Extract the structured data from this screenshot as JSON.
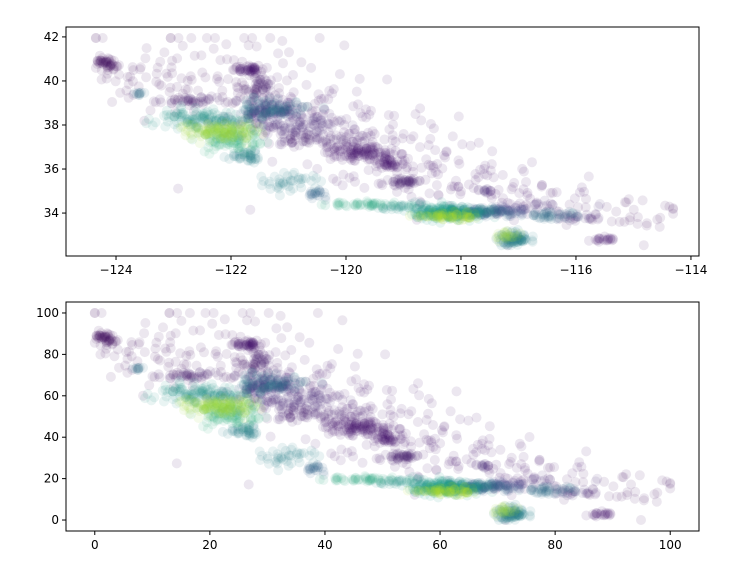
{
  "chart_data": [
    {
      "type": "scatter",
      "title": "",
      "xlabel": "",
      "ylabel": "",
      "xlim": [
        -124.87,
        -113.86
      ],
      "ylim": [
        32.05,
        42.45
      ],
      "xticks": [
        -124,
        -122,
        -120,
        -118,
        -116,
        -114
      ],
      "yticks": [
        34,
        36,
        38,
        40,
        42
      ],
      "xtick_labels": [
        "−124",
        "−122",
        "−120",
        "−118",
        "−116",
        "−114"
      ],
      "ytick_labels": [
        "34",
        "36",
        "38",
        "40",
        "42"
      ],
      "grid": false,
      "colormap": "viridis",
      "marker_alpha": 0.1,
      "seed": 7,
      "clusters": [
        {
          "x": -123.5,
          "y": 40.5,
          "sx": 0.7,
          "sy": 0.9,
          "n": 60,
          "c": 0.05
        },
        {
          "x": -122.0,
          "y": 40.0,
          "sx": 0.8,
          "sy": 1.2,
          "n": 70,
          "c": 0.05
        },
        {
          "x": -120.8,
          "y": 38.8,
          "sx": 0.7,
          "sy": 1.0,
          "n": 80,
          "c": 0.06
        },
        {
          "x": -119.5,
          "y": 37.3,
          "sx": 0.8,
          "sy": 0.9,
          "n": 70,
          "c": 0.06
        },
        {
          "x": -118.3,
          "y": 35.8,
          "sx": 0.8,
          "sy": 0.8,
          "n": 60,
          "c": 0.06
        },
        {
          "x": -117.0,
          "y": 34.8,
          "sx": 0.8,
          "sy": 0.6,
          "n": 50,
          "c": 0.06
        },
        {
          "x": -115.5,
          "y": 34.0,
          "sx": 0.8,
          "sy": 0.6,
          "n": 30,
          "c": 0.05
        },
        {
          "x": -114.6,
          "y": 33.8,
          "sx": 0.2,
          "sy": 0.7,
          "n": 8,
          "c": 0.05
        },
        {
          "x": -124.15,
          "y": 40.8,
          "sx": 0.1,
          "sy": 0.15,
          "n": 40,
          "c": 0.05
        },
        {
          "x": -123.6,
          "y": 39.4,
          "sx": 0.05,
          "sy": 0.05,
          "n": 10,
          "c": 0.35
        },
        {
          "x": -121.7,
          "y": 40.5,
          "sx": 0.1,
          "sy": 0.1,
          "n": 40,
          "c": 0.06
        },
        {
          "x": -121.5,
          "y": 39.7,
          "sx": 0.15,
          "sy": 0.3,
          "n": 40,
          "c": 0.07
        },
        {
          "x": -122.6,
          "y": 39.1,
          "sx": 0.3,
          "sy": 0.1,
          "n": 40,
          "c": 0.07
        },
        {
          "x": -122.5,
          "y": 38.3,
          "sx": 0.4,
          "sy": 0.2,
          "n": 120,
          "c": 0.5
        },
        {
          "x": -122.2,
          "y": 37.7,
          "sx": 0.3,
          "sy": 0.2,
          "n": 120,
          "c": 0.85
        },
        {
          "x": -122.0,
          "y": 37.4,
          "sx": 0.3,
          "sy": 0.3,
          "n": 100,
          "c": 0.65
        },
        {
          "x": -121.4,
          "y": 38.6,
          "sx": 0.25,
          "sy": 0.2,
          "n": 100,
          "c": 0.15
        },
        {
          "x": -121.2,
          "y": 38.8,
          "sx": 0.3,
          "sy": 0.2,
          "n": 60,
          "c": 0.4
        },
        {
          "x": -120.9,
          "y": 38.0,
          "sx": 0.4,
          "sy": 0.3,
          "n": 80,
          "c": 0.1
        },
        {
          "x": -120.5,
          "y": 37.4,
          "sx": 0.4,
          "sy": 0.2,
          "n": 60,
          "c": 0.08
        },
        {
          "x": -119.8,
          "y": 36.8,
          "sx": 0.25,
          "sy": 0.2,
          "n": 100,
          "c": 0.06
        },
        {
          "x": -119.2,
          "y": 36.3,
          "sx": 0.2,
          "sy": 0.2,
          "n": 50,
          "c": 0.06
        },
        {
          "x": -119.0,
          "y": 35.4,
          "sx": 0.15,
          "sy": 0.08,
          "n": 40,
          "c": 0.08
        },
        {
          "x": -121.7,
          "y": 36.6,
          "sx": 0.2,
          "sy": 0.15,
          "n": 40,
          "c": 0.45
        },
        {
          "x": -120.9,
          "y": 35.4,
          "sx": 0.3,
          "sy": 0.2,
          "n": 40,
          "c": 0.45
        },
        {
          "x": -120.5,
          "y": 34.9,
          "sx": 0.1,
          "sy": 0.15,
          "n": 20,
          "c": 0.3
        },
        {
          "x": -119.7,
          "y": 34.4,
          "sx": 0.3,
          "sy": 0.05,
          "n": 40,
          "c": 0.6
        },
        {
          "x": -118.9,
          "y": 34.3,
          "sx": 0.3,
          "sy": 0.08,
          "n": 40,
          "c": 0.5
        },
        {
          "x": -118.2,
          "y": 34.0,
          "sx": 0.3,
          "sy": 0.15,
          "n": 200,
          "c": 0.55
        },
        {
          "x": -118.2,
          "y": 33.85,
          "sx": 0.25,
          "sy": 0.08,
          "n": 60,
          "c": 0.9
        },
        {
          "x": -117.7,
          "y": 34.05,
          "sx": 0.3,
          "sy": 0.1,
          "n": 100,
          "c": 0.3
        },
        {
          "x": -117.2,
          "y": 34.1,
          "sx": 0.2,
          "sy": 0.1,
          "n": 40,
          "c": 0.2
        },
        {
          "x": -117.1,
          "y": 32.8,
          "sx": 0.15,
          "sy": 0.15,
          "n": 80,
          "c": 0.45
        },
        {
          "x": -117.2,
          "y": 33.0,
          "sx": 0.1,
          "sy": 0.1,
          "n": 20,
          "c": 0.85
        },
        {
          "x": -116.5,
          "y": 33.9,
          "sx": 0.25,
          "sy": 0.1,
          "n": 40,
          "c": 0.35
        },
        {
          "x": -116.1,
          "y": 33.8,
          "sx": 0.2,
          "sy": 0.1,
          "n": 20,
          "c": 0.1
        },
        {
          "x": -115.5,
          "y": 32.8,
          "sx": 0.1,
          "sy": 0.05,
          "n": 20,
          "c": 0.06
        },
        {
          "x": -117.6,
          "y": 35.0,
          "sx": 0.05,
          "sy": 0.05,
          "n": 10,
          "c": 0.1
        },
        {
          "x": -116.6,
          "y": 34.3,
          "sx": 0.5,
          "sy": 0.2,
          "n": 20,
          "c": 0.1
        }
      ]
    },
    {
      "type": "scatter",
      "title": "",
      "xlabel": "",
      "ylabel": "",
      "xlim": [
        -5,
        105
      ],
      "ylim": [
        -5.3,
        105.3
      ],
      "xticks": [
        0,
        20,
        40,
        60,
        80,
        100
      ],
      "yticks": [
        0,
        20,
        40,
        60,
        80,
        100
      ],
      "xtick_labels": [
        "0",
        "20",
        "40",
        "60",
        "80",
        "100"
      ],
      "ytick_labels": [
        "0",
        "20",
        "40",
        "60",
        "80",
        "100"
      ],
      "grid": false,
      "colormap": "viridis",
      "marker_alpha": 0.1,
      "points_source": "same points as chart 0, min-max scaled to 0-100",
      "source_xrange": [
        -124.35,
        -114.31
      ],
      "source_yrange": [
        32.54,
        41.95
      ]
    }
  ]
}
